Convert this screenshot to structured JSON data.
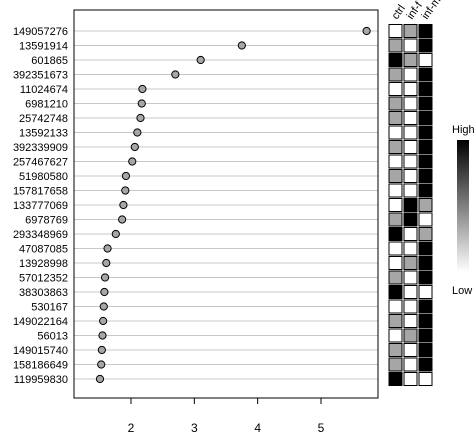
{
  "chart_data": {
    "type": "scatter",
    "title": "",
    "xlabel": "",
    "ylabel": "",
    "xlim": [
      1.1,
      5.9
    ],
    "x_ticks": [
      "2",
      "3",
      "4",
      "5"
    ],
    "x_tick_values": [
      2,
      3,
      4,
      5
    ],
    "grid": "horizontal",
    "point_color": "#a6a6a6",
    "categories": [
      "149057276",
      "13591914",
      "601865",
      "392351673",
      "11024674",
      "6981210",
      "25742748",
      "13592133",
      "392339909",
      "257467627",
      "51980580",
      "157817658",
      "133777069",
      "6978769",
      "293348969",
      "47087085",
      "13928998",
      "57012352",
      "38303863",
      "530167",
      "149022164",
      "56013",
      "149015740",
      "158186649",
      "119959830"
    ],
    "values": [
      5.72,
      3.75,
      3.1,
      2.7,
      2.18,
      2.17,
      2.15,
      2.1,
      2.06,
      2.02,
      1.92,
      1.91,
      1.88,
      1.86,
      1.76,
      1.63,
      1.61,
      1.59,
      1.58,
      1.57,
      1.56,
      1.55,
      1.54,
      1.53,
      1.51
    ],
    "heatmap": {
      "columns": [
        "ctrl",
        "inf-f",
        "inf-m"
      ],
      "levels": {
        "0": "#ffffff",
        "1": "#a6a6a6",
        "2": "#000000"
      },
      "rows": [
        [
          0,
          1,
          2
        ],
        [
          1,
          0,
          2
        ],
        [
          2,
          1,
          0
        ],
        [
          1,
          0,
          2
        ],
        [
          0,
          0,
          2
        ],
        [
          1,
          0,
          2
        ],
        [
          1,
          0,
          2
        ],
        [
          0,
          0,
          2
        ],
        [
          1,
          0,
          2
        ],
        [
          0,
          0,
          2
        ],
        [
          1,
          0,
          2
        ],
        [
          0,
          0,
          2
        ],
        [
          0,
          2,
          1
        ],
        [
          1,
          2,
          0
        ],
        [
          2,
          0,
          1
        ],
        [
          0,
          0,
          2
        ],
        [
          0,
          1,
          2
        ],
        [
          1,
          0,
          2
        ],
        [
          2,
          0,
          0
        ],
        [
          0,
          0,
          2
        ],
        [
          1,
          0,
          2
        ],
        [
          0,
          1,
          2
        ],
        [
          1,
          0,
          2
        ],
        [
          1,
          0,
          2
        ],
        [
          2,
          0,
          0
        ]
      ]
    },
    "colorbar": {
      "high_label": "High",
      "low_label": "Low",
      "gradient": [
        "#ffffff",
        "#000000"
      ]
    }
  }
}
